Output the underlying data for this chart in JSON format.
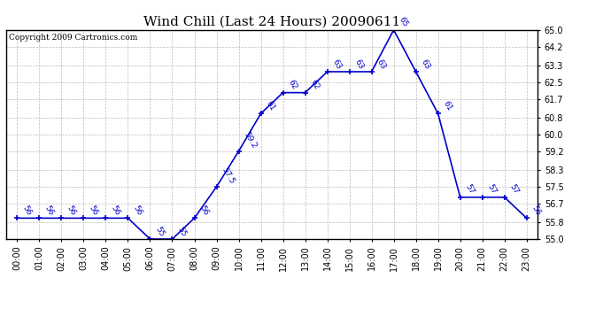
{
  "title": "Wind Chill (Last 24 Hours) 20090611",
  "copyright": "Copyright 2009 Cartronics.com",
  "hours": [
    0,
    1,
    2,
    3,
    4,
    5,
    6,
    7,
    8,
    9,
    10,
    11,
    12,
    13,
    14,
    15,
    16,
    17,
    18,
    19,
    20,
    21,
    22,
    23
  ],
  "values": [
    56,
    56,
    56,
    56,
    56,
    56,
    55,
    55,
    56,
    57.5,
    59.2,
    61,
    62,
    62,
    63,
    63,
    63,
    65,
    63,
    61,
    57,
    57,
    57,
    56
  ],
  "labels": [
    "56",
    "56",
    "56",
    "56",
    "56",
    "56",
    "55",
    "55",
    "56",
    "57.5",
    "59.2",
    "61",
    "62",
    "62",
    "63",
    "63",
    "63",
    "65",
    "63",
    "61",
    "57",
    "57",
    "57",
    "56"
  ],
  "line_color": "#0000cc",
  "marker_color": "#0000cc",
  "bg_color": "#ffffff",
  "plot_bg_color": "#ffffff",
  "grid_color": "#bbbbbb",
  "ylim": [
    55.0,
    65.0
  ],
  "yticks": [
    55.0,
    55.8,
    56.7,
    57.5,
    58.3,
    59.2,
    60.0,
    60.8,
    61.7,
    62.5,
    63.3,
    64.2,
    65.0
  ],
  "xlabel_rotation": 90,
  "title_fontsize": 11,
  "label_fontsize": 6.5,
  "tick_fontsize": 7,
  "copyright_fontsize": 6.5
}
